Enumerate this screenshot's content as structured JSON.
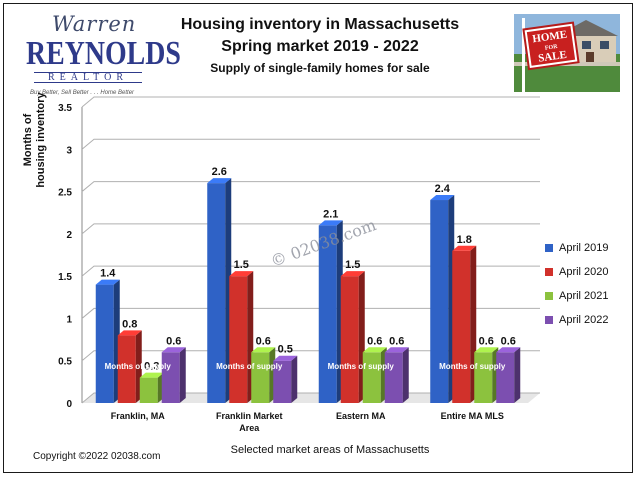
{
  "logo": {
    "script": "Warren",
    "big": "REYNOLDS",
    "sub": "REALTOR",
    "tagline": "Buy Better, Sell Better . . . Home Better"
  },
  "photo": {
    "sign_line1": "HOME",
    "sign_line2": "FOR",
    "sign_line3": "SALE"
  },
  "watermark": "© 02038.com",
  "copyright": "Copyright ©2022  02038.com",
  "colors": {
    "April 2019": "#2f62c6",
    "April 2020": "#d1312b",
    "April 2021": "#8cc23e",
    "April 2022": "#7c4fb0"
  },
  "chart_data": {
    "type": "bar",
    "title": "Housing inventory in Massachusetts",
    "subtitle": "Spring market  2019 - 2022",
    "subtitle2": "Supply of single-family homes for sale",
    "xlabel": "Selected market areas of Massachusetts",
    "ylabel_line1": "Months of",
    "ylabel_line2": "housing inventory",
    "ylim": [
      0,
      3.5
    ],
    "yticks": [
      "0",
      "0.5",
      "1",
      "1.5",
      "2",
      "2.5",
      "3",
      "3.5"
    ],
    "categories": [
      [
        "Franklin, MA"
      ],
      [
        "Franklin Market",
        "Area"
      ],
      [
        "Eastern MA"
      ],
      [
        "Entire MA MLS"
      ]
    ],
    "series": [
      {
        "name": "April 2019",
        "values": [
          1.4,
          2.6,
          2.1,
          2.4
        ],
        "labels": [
          "1.4",
          "2.6",
          "2.1",
          "2.4"
        ]
      },
      {
        "name": "April 2020",
        "values": [
          0.8,
          1.5,
          1.5,
          1.8
        ],
        "labels": [
          "0.8",
          "1.5",
          "1.5",
          "1.8"
        ]
      },
      {
        "name": "April 2021",
        "values": [
          0.3,
          0.6,
          0.6,
          0.6
        ],
        "labels": [
          "0.3",
          "0.6",
          "0.6",
          "0.6"
        ]
      },
      {
        "name": "April 2022",
        "values": [
          0.6,
          0.5,
          0.6,
          0.6
        ],
        "labels": [
          "0.6",
          "0.5",
          "0.6",
          "0.6"
        ]
      }
    ],
    "bar_annotation": "Months of supply",
    "grid": true,
    "legend": "right"
  }
}
